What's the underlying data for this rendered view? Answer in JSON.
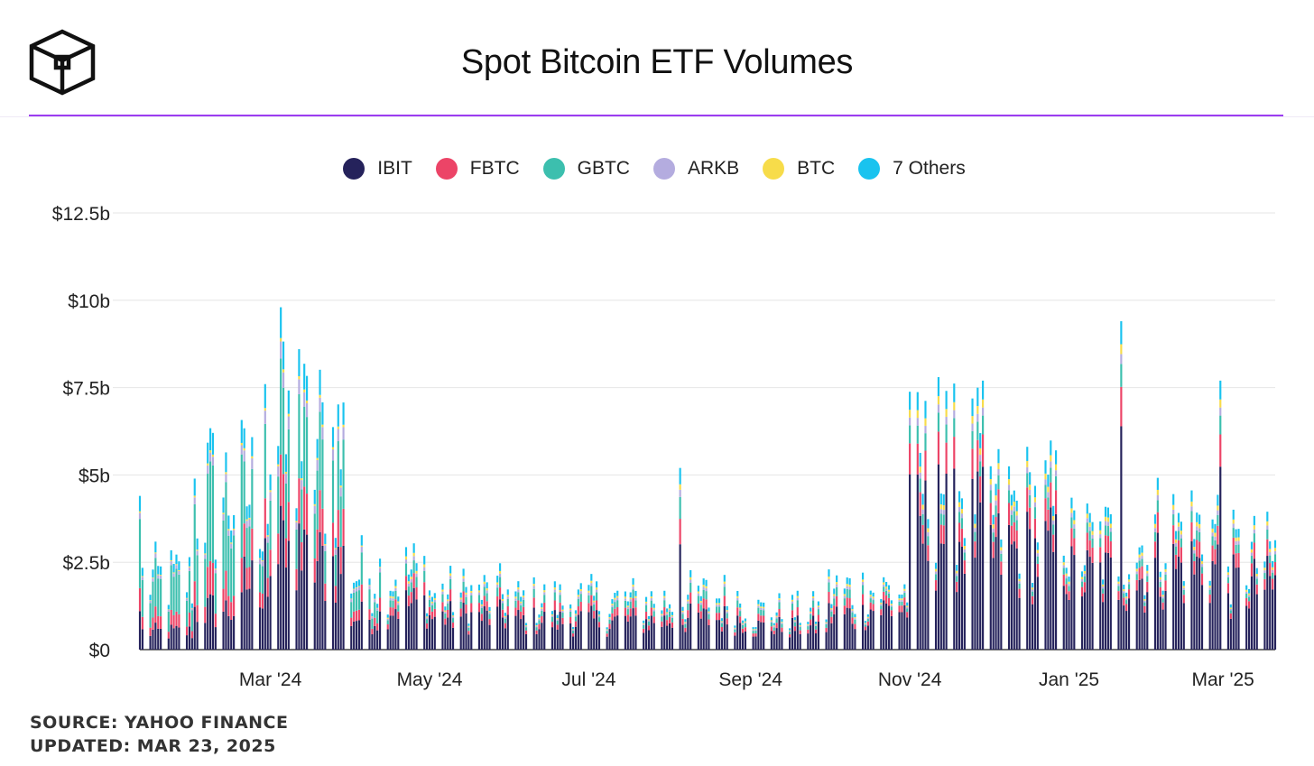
{
  "header": {
    "logo": "the-block-cube-logo",
    "title": "Spot Bitcoin ETF Volumes",
    "accent_color": "#9b3df0"
  },
  "legend": [
    {
      "name": "IBIT",
      "color": "#25225b"
    },
    {
      "name": "FBTC",
      "color": "#ec4467"
    },
    {
      "name": "GBTC",
      "color": "#3cbfae"
    },
    {
      "name": "ARKB",
      "color": "#b4acdf"
    },
    {
      "name": "BTC",
      "color": "#f7dc4a"
    },
    {
      "name": "7 Others",
      "color": "#19c3ef"
    }
  ],
  "footer": {
    "source": "SOURCE: YAHOO FINANCE",
    "updated": "UPDATED: MAR 23, 2025"
  },
  "chart_data": {
    "type": "bar",
    "stacked": true,
    "title": "Spot Bitcoin ETF Volumes",
    "y_unit": "billions USD",
    "ylim": [
      0,
      12.5
    ],
    "yticks": [
      {
        "value": 0,
        "label": "$0"
      },
      {
        "value": 2.5,
        "label": "$2.5b"
      },
      {
        "value": 5,
        "label": "$5b"
      },
      {
        "value": 7.5,
        "label": "$7.5b"
      },
      {
        "value": 10,
        "label": "$10b"
      },
      {
        "value": 12.5,
        "label": "$12.5b"
      }
    ],
    "xlim": [
      "2024-01-11",
      "2025-03-21"
    ],
    "xticks": [
      {
        "date": "2024-03-01",
        "label": "Mar '24"
      },
      {
        "date": "2024-05-01",
        "label": "May '24"
      },
      {
        "date": "2024-07-01",
        "label": "Jul '24"
      },
      {
        "date": "2024-09-01",
        "label": "Sep '24"
      },
      {
        "date": "2024-11-01",
        "label": "Nov '24"
      },
      {
        "date": "2025-01-01",
        "label": "Jan '25"
      },
      {
        "date": "2025-03-01",
        "label": "Mar '25"
      }
    ],
    "grid": true,
    "legend_position": "top-center",
    "series_names": [
      "IBIT",
      "FBTC",
      "GBTC",
      "ARKB",
      "BTC",
      "7 Others"
    ],
    "monthly_avg_total_billions": {
      "2024-01": 2.0,
      "2024-02": 4.5,
      "2024-03": 5.8,
      "2024-04": 2.2,
      "2024-05": 1.6,
      "2024-06": 1.4,
      "2024-07": 1.4,
      "2024-08": 1.5,
      "2024-09": 1.1,
      "2024-10": 1.7,
      "2024-11": 5.0,
      "2024-12": 4.0,
      "2025-01": 3.0,
      "2025-02": 3.4,
      "2025-03": 2.6
    },
    "notable_days_total_billions": [
      {
        "date": "2024-01-11",
        "total": 4.4
      },
      {
        "date": "2024-02-28",
        "total": 7.6
      },
      {
        "date": "2024-03-05",
        "total": 9.8
      },
      {
        "date": "2024-03-12",
        "total": 8.6
      },
      {
        "date": "2024-08-05",
        "total": 5.2
      },
      {
        "date": "2024-11-12",
        "total": 7.8
      },
      {
        "date": "2025-01-21",
        "total": 9.4
      },
      {
        "date": "2025-02-28",
        "total": 7.7
      }
    ]
  }
}
